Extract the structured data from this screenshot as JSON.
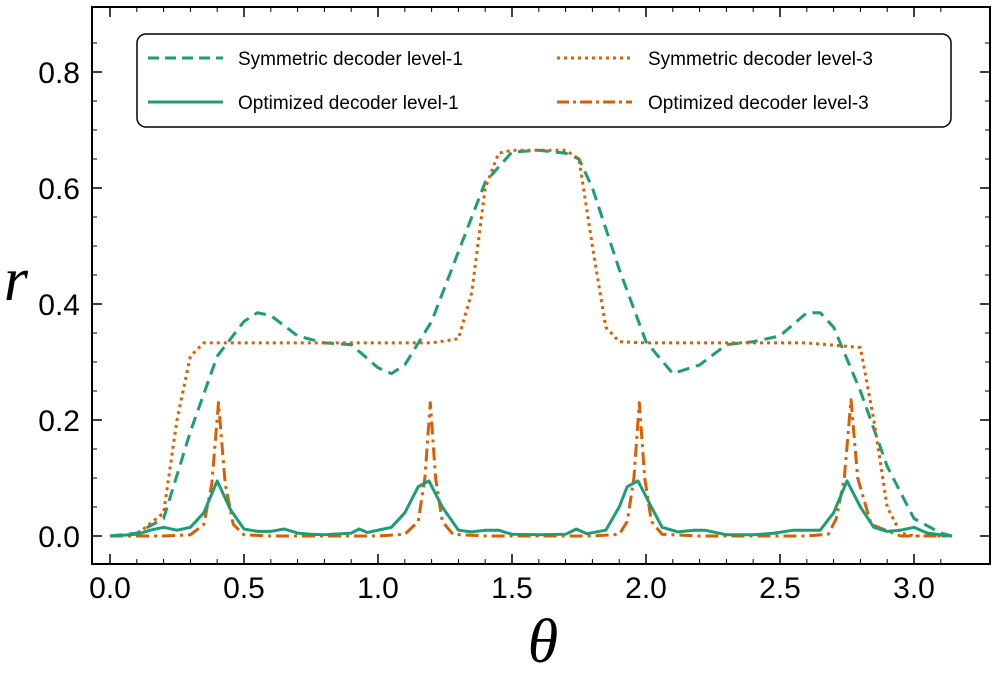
{
  "chart_data": {
    "type": "line",
    "title": "",
    "xlabel": "θ",
    "ylabel": "r",
    "xlim": [
      0.0,
      3.1416
    ],
    "ylim": [
      -0.05,
      0.92
    ],
    "xticks": [
      0.0,
      0.5,
      1.0,
      1.5,
      2.0,
      2.5,
      3.0
    ],
    "xtick_labels": [
      "0.0",
      "0.5",
      "1.0",
      "1.5",
      "2.0",
      "2.5",
      "3.0"
    ],
    "yticks": [
      0.0,
      0.2,
      0.4,
      0.6,
      0.8
    ],
    "ytick_labels": [
      "0.0",
      "0.2",
      "0.4",
      "0.6",
      "0.8"
    ],
    "grid": false,
    "legend_position": "top",
    "colors": {
      "green": "#1b9e77",
      "orange": "#d95f02"
    },
    "series": [
      {
        "name": "Symmetric decoder level-1",
        "color": "#1b9e77",
        "style": "dashed",
        "x": [
          0.0,
          0.1,
          0.2,
          0.3,
          0.4,
          0.5,
          0.55,
          0.6,
          0.7,
          0.8,
          0.9,
          1.0,
          1.05,
          1.1,
          1.2,
          1.3,
          1.4,
          1.5,
          1.6,
          1.7,
          1.75,
          1.8,
          1.9,
          2.0,
          2.1,
          2.2,
          2.3,
          2.4,
          2.5,
          2.6,
          2.65,
          2.7,
          2.8,
          2.9,
          3.0,
          3.1,
          3.1416
        ],
        "y": [
          0.0,
          0.005,
          0.03,
          0.18,
          0.31,
          0.37,
          0.385,
          0.38,
          0.345,
          0.333,
          0.33,
          0.29,
          0.28,
          0.295,
          0.37,
          0.49,
          0.61,
          0.662,
          0.665,
          0.66,
          0.65,
          0.6,
          0.46,
          0.335,
          0.28,
          0.295,
          0.33,
          0.335,
          0.345,
          0.385,
          0.385,
          0.36,
          0.25,
          0.12,
          0.03,
          0.005,
          0.0
        ]
      },
      {
        "name": "Symmetric decoder level-3",
        "color": "#d95f02",
        "style": "dotted",
        "x": [
          0.0,
          0.1,
          0.2,
          0.25,
          0.3,
          0.35,
          0.4,
          0.6,
          0.8,
          1.0,
          1.2,
          1.3,
          1.35,
          1.4,
          1.45,
          1.5,
          1.6,
          1.7,
          1.75,
          1.8,
          1.85,
          1.9,
          2.0,
          2.2,
          2.4,
          2.6,
          2.8,
          2.85,
          2.9,
          2.95,
          3.0,
          3.1,
          3.1416
        ],
        "y": [
          0.0,
          0.003,
          0.04,
          0.2,
          0.31,
          0.333,
          0.333,
          0.333,
          0.333,
          0.333,
          0.333,
          0.34,
          0.42,
          0.6,
          0.66,
          0.665,
          0.665,
          0.665,
          0.65,
          0.5,
          0.36,
          0.335,
          0.333,
          0.333,
          0.333,
          0.333,
          0.325,
          0.2,
          0.05,
          0.005,
          0.0,
          0.0,
          0.0
        ]
      },
      {
        "name": "Optimized decoder level-1",
        "color": "#1b9e77",
        "style": "solid",
        "x": [
          0.0,
          0.1,
          0.15,
          0.2,
          0.25,
          0.3,
          0.35,
          0.4,
          0.45,
          0.5,
          0.55,
          0.6,
          0.65,
          0.7,
          0.75,
          0.8,
          0.9,
          0.93,
          0.96,
          1.0,
          1.05,
          1.1,
          1.15,
          1.19,
          1.24,
          1.3,
          1.35,
          1.4,
          1.45,
          1.5,
          1.6,
          1.7,
          1.74,
          1.78,
          1.85,
          1.9,
          1.93,
          1.97,
          2.02,
          2.06,
          2.12,
          2.18,
          2.22,
          2.3,
          2.4,
          2.48,
          2.55,
          2.65,
          2.7,
          2.75,
          2.8,
          2.85,
          2.9,
          2.95,
          3.0,
          3.05,
          3.1,
          3.1416
        ],
        "y": [
          0.0,
          0.003,
          0.01,
          0.015,
          0.01,
          0.015,
          0.04,
          0.095,
          0.045,
          0.012,
          0.008,
          0.008,
          0.012,
          0.005,
          0.003,
          0.002,
          0.005,
          0.012,
          0.006,
          0.01,
          0.015,
          0.04,
          0.085,
          0.095,
          0.05,
          0.01,
          0.007,
          0.01,
          0.01,
          0.003,
          0.002,
          0.003,
          0.012,
          0.004,
          0.01,
          0.05,
          0.085,
          0.095,
          0.05,
          0.015,
          0.007,
          0.01,
          0.01,
          0.002,
          0.002,
          0.005,
          0.01,
          0.01,
          0.04,
          0.095,
          0.05,
          0.015,
          0.008,
          0.01,
          0.015,
          0.005,
          0.002,
          0.0
        ]
      },
      {
        "name": "Optimized decoder level-3",
        "color": "#d95f02",
        "style": "dashdot",
        "x": [
          0.0,
          0.2,
          0.3,
          0.35,
          0.38,
          0.405,
          0.43,
          0.46,
          0.5,
          0.6,
          1.0,
          1.1,
          1.15,
          1.175,
          1.195,
          1.215,
          1.24,
          1.28,
          1.4,
          1.8,
          1.9,
          1.93,
          1.955,
          1.975,
          1.995,
          2.02,
          2.06,
          2.2,
          2.6,
          2.68,
          2.71,
          2.74,
          2.765,
          2.79,
          2.84,
          2.95,
          3.1416
        ],
        "y": [
          0.0,
          0.0,
          0.002,
          0.02,
          0.09,
          0.23,
          0.09,
          0.02,
          0.002,
          0.0,
          0.0,
          0.003,
          0.025,
          0.1,
          0.23,
          0.1,
          0.025,
          0.003,
          0.0,
          0.0,
          0.003,
          0.025,
          0.1,
          0.23,
          0.1,
          0.025,
          0.003,
          0.0,
          0.0,
          0.003,
          0.03,
          0.1,
          0.235,
          0.1,
          0.02,
          0.0,
          0.0
        ]
      }
    ]
  }
}
